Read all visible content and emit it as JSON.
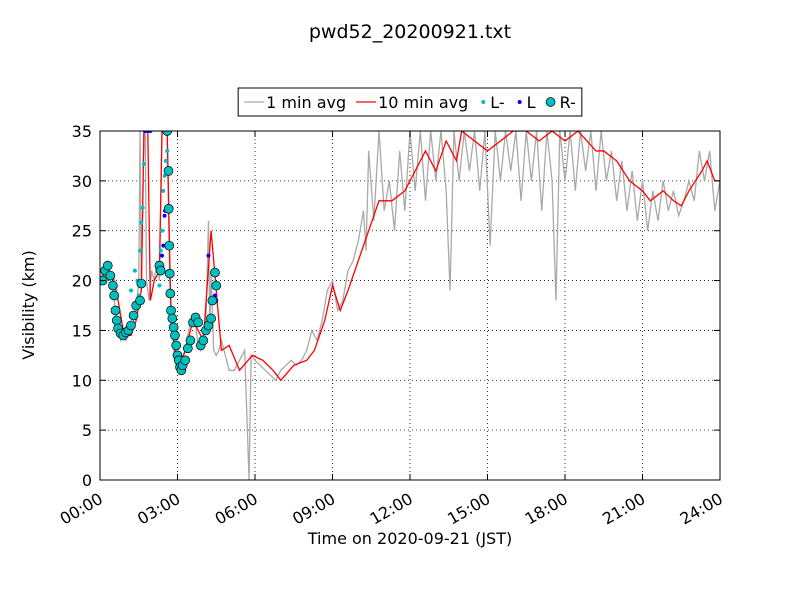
{
  "chart_data": {
    "type": "line",
    "title": "pwd52_20200921.txt",
    "x_label": "Time on 2020-09-21 (JST)",
    "y_label": "Visibility (km)",
    "xlim": [
      0,
      24
    ],
    "ylim": [
      0,
      35
    ],
    "xticks": [
      {
        "value": 0,
        "label": "00:00"
      },
      {
        "value": 3,
        "label": "03:00"
      },
      {
        "value": 6,
        "label": "06:00"
      },
      {
        "value": 9,
        "label": "09:00"
      },
      {
        "value": 12,
        "label": "12:00"
      },
      {
        "value": 15,
        "label": "15:00"
      },
      {
        "value": 18,
        "label": "18:00"
      },
      {
        "value": 21,
        "label": "21:00"
      },
      {
        "value": 24,
        "label": "24:00"
      }
    ],
    "yticks": [
      0,
      5,
      10,
      15,
      20,
      25,
      30,
      35
    ],
    "grid": true,
    "legend": "upper center",
    "series": [
      {
        "name": "1 min avg",
        "kind": "line",
        "color": "#a9a9a9",
        "x": [
          0,
          0.1,
          0.2,
          0.3,
          0.4,
          0.5,
          0.6,
          0.7,
          0.8,
          0.9,
          1.0,
          1.1,
          1.2,
          1.3,
          1.4,
          1.5,
          1.55,
          1.6,
          1.7,
          1.75,
          1.8,
          1.9,
          2.0,
          2.1,
          2.2,
          2.3,
          2.4,
          2.5,
          2.6,
          2.7,
          2.8,
          2.9,
          3.0,
          3.1,
          3.2,
          3.3,
          3.4,
          3.5,
          3.6,
          3.7,
          3.8,
          3.9,
          4.0,
          4.1,
          4.2,
          4.25,
          4.3,
          4.4,
          4.5,
          4.6,
          4.7,
          4.8,
          4.9,
          5.0,
          5.2,
          5.4,
          5.6,
          5.77,
          5.85,
          6.0,
          6.2,
          6.4,
          6.6,
          6.8,
          7.0,
          7.2,
          7.4,
          7.6,
          7.8,
          8.0,
          8.2,
          8.4,
          8.6,
          8.8,
          9.0,
          9.2,
          9.4,
          9.6,
          9.8,
          10.0,
          10.2,
          10.3,
          10.4,
          10.6,
          10.8,
          11.0,
          11.2,
          11.4,
          11.6,
          11.8,
          12.0,
          12.2,
          12.4,
          12.6,
          12.8,
          13.0,
          13.2,
          13.4,
          13.55,
          13.7,
          13.9,
          14.1,
          14.3,
          14.5,
          14.7,
          14.9,
          15.1,
          15.3,
          15.5,
          15.7,
          15.9,
          16.1,
          16.3,
          16.5,
          16.7,
          16.9,
          17.1,
          17.3,
          17.5,
          17.65,
          17.8,
          18.0,
          18.2,
          18.4,
          18.6,
          18.8,
          19.0,
          19.2,
          19.4,
          19.6,
          19.8,
          20.0,
          20.2,
          20.4,
          20.6,
          20.8,
          21.0,
          21.2,
          21.4,
          21.6,
          21.8,
          22.0,
          22.2,
          22.4,
          22.6,
          22.8,
          23.0,
          23.2,
          23.4,
          23.6,
          23.8,
          24.0
        ],
        "values": [
          19.5,
          21,
          20,
          22,
          20,
          19,
          17,
          15,
          14,
          14.5,
          14,
          15,
          15,
          16,
          17,
          20,
          35,
          19,
          35,
          35,
          20,
          18,
          21,
          20,
          22,
          20,
          35,
          35,
          35,
          20,
          15,
          12,
          11,
          11.5,
          12,
          13,
          14.5,
          16,
          16.5,
          15.5,
          13.5,
          13,
          14.5,
          16,
          26,
          15,
          21,
          13,
          12.5,
          13,
          14,
          13,
          12,
          11,
          11,
          12,
          13,
          0,
          12.5,
          12,
          11.5,
          11,
          10.5,
          10,
          11,
          11.5,
          12,
          11.5,
          12,
          13,
          15,
          14,
          16,
          19,
          20,
          17,
          18,
          21,
          22,
          24,
          27,
          23,
          33,
          26,
          35,
          27,
          30,
          25,
          33,
          27,
          35,
          29,
          35,
          28,
          35,
          30,
          35,
          29,
          19,
          35,
          30,
          35,
          31,
          35,
          29,
          35,
          23.5,
          35,
          30,
          35,
          31,
          35,
          28,
          35,
          30,
          35,
          27,
          35,
          30,
          18,
          35,
          30,
          35,
          29,
          35,
          31,
          35,
          29,
          35,
          30,
          33,
          28,
          32,
          27,
          31,
          26,
          30,
          25,
          29,
          26,
          30,
          27,
          29,
          26.5,
          28,
          30,
          28,
          33,
          30,
          33,
          27,
          30
        ]
      },
      {
        "name": "10 min avg",
        "kind": "line",
        "color": "#ff0000",
        "x": [
          0,
          0.25,
          0.5,
          0.7,
          0.9,
          1.0,
          1.2,
          1.4,
          1.6,
          1.7,
          1.85,
          1.95,
          2.1,
          2.3,
          2.4,
          2.6,
          2.75,
          3.0,
          3.3,
          3.6,
          4.0,
          4.3,
          4.7,
          5.0,
          5.4,
          5.9,
          6.3,
          6.7,
          7.0,
          7.5,
          8.0,
          8.3,
          8.7,
          9.0,
          9.3,
          9.6,
          10.0,
          10.4,
          10.8,
          11.3,
          11.8,
          12.2,
          12.6,
          13.0,
          13.4,
          13.8,
          14.0,
          14.5,
          15.0,
          15.5,
          16.0,
          16.5,
          17.0,
          17.5,
          18.0,
          18.5,
          19.2,
          19.5,
          20.0,
          20.5,
          21.0,
          21.3,
          21.8,
          22.2,
          22.5,
          22.8,
          23.3,
          23.5,
          23.8,
          24.0
        ],
        "values": [
          20,
          21,
          20.5,
          18,
          15,
          14.5,
          14.5,
          16,
          19,
          35,
          35,
          18,
          20,
          21,
          35,
          35,
          16,
          11,
          13,
          16,
          14,
          25,
          13,
          13.5,
          11,
          12.5,
          12,
          11,
          10,
          11.5,
          12,
          13,
          16,
          19.5,
          17,
          19,
          22,
          25,
          28,
          28,
          29,
          31,
          33,
          31,
          34,
          32,
          35,
          34,
          33,
          34,
          35,
          35,
          34,
          35,
          34,
          35,
          33,
          33,
          32,
          30,
          29,
          28,
          29,
          28,
          27.5,
          29,
          31,
          32,
          30,
          30
        ]
      },
      {
        "name": "L-",
        "kind": "points",
        "color": "#00bfbf",
        "x": [
          1.2,
          1.35,
          1.45,
          1.5,
          1.55,
          1.6,
          1.65,
          1.7,
          2.3,
          2.35,
          2.4,
          2.45,
          2.5,
          2.55,
          2.6
        ],
        "values": [
          19,
          21,
          20,
          18.5,
          23,
          25.8,
          27.3,
          31.7,
          19.5,
          23,
          25,
          29,
          30.5,
          32,
          33
        ]
      },
      {
        "name": "L",
        "kind": "points",
        "color": "#0000ff",
        "x": [
          1.75,
          1.85,
          1.95,
          2.4,
          2.45,
          2.5,
          2.52,
          2.6,
          4.2,
          4.45,
          4.5
        ],
        "values": [
          35,
          35,
          35,
          22.5,
          23.5,
          26.5,
          27,
          35,
          22.5,
          18.5,
          18
        ]
      },
      {
        "name": "R-",
        "kind": "circles",
        "color": "#00bfbf",
        "x": [
          0.1,
          0.2,
          0.3,
          0.4,
          0.5,
          0.55,
          0.6,
          0.65,
          0.7,
          0.8,
          0.9,
          1.0,
          1.1,
          1.2,
          1.3,
          1.4,
          1.55,
          1.6,
          2.3,
          2.35,
          2.6,
          2.65,
          2.66,
          2.68,
          2.7,
          2.72,
          2.75,
          2.8,
          2.85,
          2.9,
          2.95,
          3.0,
          3.05,
          3.1,
          3.15,
          3.2,
          3.3,
          3.4,
          3.5,
          3.6,
          3.7,
          3.8,
          3.9,
          4.0,
          4.1,
          4.2,
          4.3,
          4.35,
          4.45,
          4.5
        ],
        "values": [
          20,
          21,
          21.5,
          20.5,
          19.5,
          18.5,
          17,
          16,
          15.2,
          14.7,
          14.5,
          14.8,
          15,
          15.5,
          16.5,
          17.5,
          18,
          19.7,
          21.5,
          21,
          35,
          31,
          27.2,
          23.5,
          20.7,
          18.7,
          17,
          16.2,
          15.3,
          14.5,
          13.5,
          12.5,
          12,
          11.3,
          11,
          11.5,
          12,
          13.2,
          14,
          15.8,
          16.3,
          15.8,
          13.5,
          14,
          15,
          15.5,
          16.2,
          18,
          20.8,
          19.5
        ]
      }
    ]
  }
}
